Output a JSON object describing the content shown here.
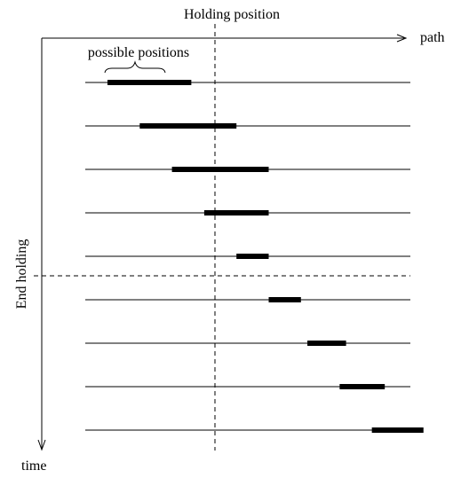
{
  "diagram": {
    "title": "Holding position",
    "labels": {
      "x_axis": "path",
      "y_axis": "time",
      "end_holding": "End holding",
      "possible_positions": "possible positions"
    },
    "colors": {
      "line": "#000000",
      "background": "#ffffff"
    },
    "timesteps": [
      {
        "start": 0.0,
        "end": 0.26
      },
      {
        "start": 0.1,
        "end": 0.4
      },
      {
        "start": 0.2,
        "end": 0.5
      },
      {
        "start": 0.3,
        "end": 0.5
      },
      {
        "start": 0.4,
        "end": 0.5
      },
      {
        "start": 0.5,
        "end": 0.6
      },
      {
        "start": 0.62,
        "end": 0.74
      },
      {
        "start": 0.72,
        "end": 0.86
      },
      {
        "start": 0.82,
        "end": 0.98
      }
    ]
  }
}
